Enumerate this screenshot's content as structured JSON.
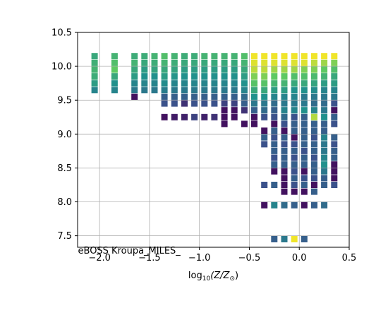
{
  "chart_data": {
    "type": "scatter",
    "marker": "square",
    "xlabel_main": "log",
    "xlabel_sub": "10",
    "xlabel_rest": "(Z/Z",
    "xlabel_sub2": "⊙",
    "xlabel_close": ")",
    "annotation": "eBOSS Kroupa_MILES_",
    "xlim": [
      -2.22,
      0.5
    ],
    "ylim": [
      7.33,
      10.5
    ],
    "grid": true,
    "xticks": [
      {
        "value": -2.0,
        "label": "−2.0"
      },
      {
        "value": -1.5,
        "label": "−1.5"
      },
      {
        "value": -1.0,
        "label": "−1.0"
      },
      {
        "value": -0.5,
        "label": "−0.5"
      },
      {
        "value": 0.0,
        "label": "0.0"
      },
      {
        "value": 0.5,
        "label": "0.5"
      }
    ],
    "yticks": [
      {
        "value": 7.5,
        "label": "7.5"
      },
      {
        "value": 8.0,
        "label": "8.0"
      },
      {
        "value": 8.5,
        "label": "8.5"
      },
      {
        "value": 9.0,
        "label": "9.0"
      },
      {
        "value": 9.5,
        "label": "9.5"
      },
      {
        "value": 10.0,
        "label": "10.0"
      },
      {
        "value": 10.5,
        "label": "10.5"
      }
    ],
    "colormap": [
      "#440154",
      "#3b528b",
      "#21918c",
      "#5ec962",
      "#fde725"
    ],
    "color_level_range": [
      0,
      1
    ],
    "points": [
      [
        -2.05,
        10.15,
        0.6
      ],
      [
        -2.05,
        10.05,
        0.63
      ],
      [
        -2.05,
        9.95,
        0.65
      ],
      [
        -2.05,
        9.85,
        0.62
      ],
      [
        -2.05,
        9.75,
        0.55
      ],
      [
        -2.05,
        9.65,
        0.45
      ],
      [
        -1.85,
        10.15,
        0.65
      ],
      [
        -1.85,
        10.05,
        0.7
      ],
      [
        -1.85,
        9.95,
        0.75
      ],
      [
        -1.85,
        9.85,
        0.6
      ],
      [
        -1.85,
        9.75,
        0.5
      ],
      [
        -1.85,
        9.65,
        0.45
      ],
      [
        -1.65,
        10.15,
        0.62
      ],
      [
        -1.65,
        10.05,
        0.65
      ],
      [
        -1.65,
        9.95,
        0.6
      ],
      [
        -1.65,
        9.85,
        0.55
      ],
      [
        -1.65,
        9.75,
        0.45
      ],
      [
        -1.65,
        9.65,
        0.4
      ],
      [
        -1.65,
        9.55,
        0.05
      ],
      [
        -1.55,
        10.15,
        0.62
      ],
      [
        -1.55,
        10.05,
        0.6
      ],
      [
        -1.55,
        9.95,
        0.55
      ],
      [
        -1.55,
        9.85,
        0.5
      ],
      [
        -1.55,
        9.75,
        0.45
      ],
      [
        -1.55,
        9.65,
        0.4
      ],
      [
        -1.45,
        10.15,
        0.65
      ],
      [
        -1.45,
        10.05,
        0.62
      ],
      [
        -1.45,
        9.95,
        0.58
      ],
      [
        -1.45,
        9.85,
        0.5
      ],
      [
        -1.45,
        9.75,
        0.45
      ],
      [
        -1.45,
        9.65,
        0.4
      ],
      [
        -1.35,
        10.15,
        0.7
      ],
      [
        -1.35,
        10.05,
        0.65
      ],
      [
        -1.35,
        9.95,
        0.6
      ],
      [
        -1.35,
        9.85,
        0.55
      ],
      [
        -1.35,
        9.75,
        0.48
      ],
      [
        -1.35,
        9.65,
        0.42
      ],
      [
        -1.35,
        9.55,
        0.3
      ],
      [
        -1.35,
        9.45,
        0.25
      ],
      [
        -1.35,
        9.25,
        0.05
      ],
      [
        -1.25,
        10.15,
        0.65
      ],
      [
        -1.25,
        10.05,
        0.62
      ],
      [
        -1.25,
        9.95,
        0.58
      ],
      [
        -1.25,
        9.85,
        0.52
      ],
      [
        -1.25,
        9.75,
        0.45
      ],
      [
        -1.25,
        9.65,
        0.4
      ],
      [
        -1.25,
        9.55,
        0.3
      ],
      [
        -1.25,
        9.45,
        0.25
      ],
      [
        -1.25,
        9.25,
        0.08
      ],
      [
        -1.15,
        10.15,
        0.62
      ],
      [
        -1.15,
        10.05,
        0.6
      ],
      [
        -1.15,
        9.95,
        0.55
      ],
      [
        -1.15,
        9.85,
        0.5
      ],
      [
        -1.15,
        9.75,
        0.45
      ],
      [
        -1.15,
        9.65,
        0.4
      ],
      [
        -1.15,
        9.55,
        0.3
      ],
      [
        -1.15,
        9.45,
        0.15
      ],
      [
        -1.15,
        9.25,
        0.1
      ],
      [
        -1.05,
        10.15,
        0.62
      ],
      [
        -1.05,
        10.05,
        0.6
      ],
      [
        -1.05,
        9.95,
        0.55
      ],
      [
        -1.05,
        9.85,
        0.5
      ],
      [
        -1.05,
        9.75,
        0.45
      ],
      [
        -1.05,
        9.65,
        0.4
      ],
      [
        -1.05,
        9.55,
        0.3
      ],
      [
        -1.05,
        9.45,
        0.25
      ],
      [
        -1.05,
        9.25,
        0.2
      ],
      [
        -0.95,
        10.15,
        0.65
      ],
      [
        -0.95,
        10.05,
        0.6
      ],
      [
        -0.95,
        9.95,
        0.55
      ],
      [
        -0.95,
        9.85,
        0.5
      ],
      [
        -0.95,
        9.75,
        0.45
      ],
      [
        -0.95,
        9.65,
        0.4
      ],
      [
        -0.95,
        9.55,
        0.3
      ],
      [
        -0.95,
        9.45,
        0.25
      ],
      [
        -0.95,
        9.25,
        0.1
      ],
      [
        -0.85,
        10.15,
        0.65
      ],
      [
        -0.85,
        10.05,
        0.6
      ],
      [
        -0.85,
        9.95,
        0.55
      ],
      [
        -0.85,
        9.85,
        0.5
      ],
      [
        -0.85,
        9.75,
        0.45
      ],
      [
        -0.85,
        9.65,
        0.4
      ],
      [
        -0.85,
        9.55,
        0.3
      ],
      [
        -0.85,
        9.45,
        0.25
      ],
      [
        -0.85,
        9.25,
        0.15
      ],
      [
        -0.75,
        10.15,
        0.65
      ],
      [
        -0.75,
        10.05,
        0.6
      ],
      [
        -0.75,
        9.95,
        0.55
      ],
      [
        -0.75,
        9.85,
        0.5
      ],
      [
        -0.75,
        9.75,
        0.45
      ],
      [
        -0.75,
        9.65,
        0.4
      ],
      [
        -0.75,
        9.55,
        0.3
      ],
      [
        -0.75,
        9.45,
        0.2
      ],
      [
        -0.75,
        9.35,
        0.05
      ],
      [
        -0.75,
        9.25,
        0.05
      ],
      [
        -0.75,
        9.15,
        0.05
      ],
      [
        -0.65,
        10.15,
        0.65
      ],
      [
        -0.65,
        10.05,
        0.6
      ],
      [
        -0.65,
        9.95,
        0.55
      ],
      [
        -0.65,
        9.85,
        0.5
      ],
      [
        -0.65,
        9.75,
        0.45
      ],
      [
        -0.65,
        9.65,
        0.4
      ],
      [
        -0.65,
        9.55,
        0.3
      ],
      [
        -0.65,
        9.45,
        0.2
      ],
      [
        -0.65,
        9.35,
        0.05
      ],
      [
        -0.65,
        9.25,
        0.05
      ],
      [
        -0.55,
        10.15,
        0.7
      ],
      [
        -0.55,
        10.05,
        0.65
      ],
      [
        -0.55,
        9.95,
        0.6
      ],
      [
        -0.55,
        9.85,
        0.55
      ],
      [
        -0.55,
        9.75,
        0.5
      ],
      [
        -0.55,
        9.65,
        0.45
      ],
      [
        -0.55,
        9.55,
        0.35
      ],
      [
        -0.55,
        9.45,
        0.3
      ],
      [
        -0.55,
        9.35,
        0.15
      ],
      [
        -0.55,
        9.15,
        0.05
      ],
      [
        -0.45,
        10.15,
        0.98
      ],
      [
        -0.45,
        10.05,
        0.95
      ],
      [
        -0.45,
        9.95,
        0.9
      ],
      [
        -0.45,
        9.85,
        0.8
      ],
      [
        -0.45,
        9.75,
        0.72
      ],
      [
        -0.45,
        9.65,
        0.6
      ],
      [
        -0.45,
        9.55,
        0.5
      ],
      [
        -0.45,
        9.45,
        0.4
      ],
      [
        -0.45,
        9.35,
        0.3
      ],
      [
        -0.45,
        9.25,
        0.05
      ],
      [
        -0.45,
        9.15,
        0.05
      ],
      [
        -0.35,
        10.15,
        0.98
      ],
      [
        -0.35,
        10.05,
        0.95
      ],
      [
        -0.35,
        9.95,
        0.9
      ],
      [
        -0.35,
        9.85,
        0.8
      ],
      [
        -0.35,
        9.75,
        0.72
      ],
      [
        -0.35,
        9.65,
        0.6
      ],
      [
        -0.35,
        9.55,
        0.5
      ],
      [
        -0.35,
        9.45,
        0.4
      ],
      [
        -0.35,
        9.35,
        0.35
      ],
      [
        -0.35,
        9.25,
        0.25
      ],
      [
        -0.35,
        9.05,
        0.05
      ],
      [
        -0.35,
        8.95,
        0.3
      ],
      [
        -0.35,
        8.85,
        0.25
      ],
      [
        -0.35,
        8.25,
        0.25
      ],
      [
        -0.35,
        7.95,
        0.05
      ],
      [
        -0.25,
        10.15,
        0.98
      ],
      [
        -0.25,
        10.05,
        0.95
      ],
      [
        -0.25,
        9.95,
        0.85
      ],
      [
        -0.25,
        9.85,
        0.75
      ],
      [
        -0.25,
        9.75,
        0.65
      ],
      [
        -0.25,
        9.65,
        0.55
      ],
      [
        -0.25,
        9.55,
        0.45
      ],
      [
        -0.25,
        9.45,
        0.35
      ],
      [
        -0.25,
        9.35,
        0.3
      ],
      [
        -0.25,
        9.25,
        0.25
      ],
      [
        -0.25,
        9.15,
        0.05
      ],
      [
        -0.25,
        9.05,
        0.3
      ],
      [
        -0.25,
        8.95,
        0.25
      ],
      [
        -0.25,
        8.85,
        0.3
      ],
      [
        -0.25,
        8.75,
        0.3
      ],
      [
        -0.25,
        8.65,
        0.25
      ],
      [
        -0.25,
        8.55,
        0.3
      ],
      [
        -0.25,
        8.45,
        0.05
      ],
      [
        -0.25,
        8.25,
        0.3
      ],
      [
        -0.25,
        7.95,
        0.45
      ],
      [
        -0.25,
        7.45,
        0.3
      ],
      [
        -0.15,
        10.15,
        0.98
      ],
      [
        -0.15,
        10.05,
        0.95
      ],
      [
        -0.15,
        9.95,
        0.85
      ],
      [
        -0.15,
        9.85,
        0.75
      ],
      [
        -0.15,
        9.75,
        0.65
      ],
      [
        -0.15,
        9.65,
        0.55
      ],
      [
        -0.15,
        9.55,
        0.45
      ],
      [
        -0.15,
        9.45,
        0.4
      ],
      [
        -0.15,
        9.35,
        0.45
      ],
      [
        -0.15,
        9.25,
        0.35
      ],
      [
        -0.15,
        9.15,
        0.25
      ],
      [
        -0.15,
        9.05,
        0.05
      ],
      [
        -0.15,
        8.95,
        0.3
      ],
      [
        -0.15,
        8.85,
        0.25
      ],
      [
        -0.15,
        8.75,
        0.3
      ],
      [
        -0.15,
        8.65,
        0.3
      ],
      [
        -0.15,
        8.55,
        0.3
      ],
      [
        -0.15,
        8.45,
        0.05
      ],
      [
        -0.15,
        8.35,
        0.05
      ],
      [
        -0.15,
        8.25,
        0.05
      ],
      [
        -0.15,
        8.15,
        0.05
      ],
      [
        -0.15,
        7.95,
        0.35
      ],
      [
        -0.15,
        7.45,
        0.4
      ],
      [
        -0.05,
        10.15,
        0.98
      ],
      [
        -0.05,
        10.05,
        0.95
      ],
      [
        -0.05,
        9.95,
        0.85
      ],
      [
        -0.05,
        9.85,
        0.7
      ],
      [
        -0.05,
        9.75,
        0.6
      ],
      [
        -0.05,
        9.65,
        0.5
      ],
      [
        -0.05,
        9.55,
        0.45
      ],
      [
        -0.05,
        9.45,
        0.4
      ],
      [
        -0.05,
        9.35,
        0.45
      ],
      [
        -0.05,
        9.25,
        0.25
      ],
      [
        -0.05,
        9.15,
        0.3
      ],
      [
        -0.05,
        9.05,
        0.3
      ],
      [
        -0.05,
        8.95,
        0.05
      ],
      [
        -0.05,
        8.85,
        0.25
      ],
      [
        -0.05,
        8.75,
        0.3
      ],
      [
        -0.05,
        8.65,
        0.25
      ],
      [
        -0.05,
        8.55,
        0.3
      ],
      [
        -0.05,
        8.45,
        0.25
      ],
      [
        -0.05,
        8.35,
        0.3
      ],
      [
        -0.05,
        8.25,
        0.25
      ],
      [
        -0.05,
        8.15,
        0.05
      ],
      [
        -0.05,
        7.95,
        0.3
      ],
      [
        -0.05,
        7.45,
        0.98
      ],
      [
        0.05,
        10.15,
        0.98
      ],
      [
        0.05,
        10.05,
        0.95
      ],
      [
        0.05,
        9.95,
        0.8
      ],
      [
        0.05,
        9.85,
        0.7
      ],
      [
        0.05,
        9.75,
        0.6
      ],
      [
        0.05,
        9.65,
        0.5
      ],
      [
        0.05,
        9.55,
        0.4
      ],
      [
        0.05,
        9.45,
        0.4
      ],
      [
        0.05,
        9.35,
        0.5
      ],
      [
        0.05,
        9.25,
        0.3
      ],
      [
        0.05,
        9.15,
        0.3
      ],
      [
        0.05,
        9.05,
        0.3
      ],
      [
        0.05,
        8.95,
        0.3
      ],
      [
        0.05,
        8.85,
        0.3
      ],
      [
        0.05,
        8.75,
        0.25
      ],
      [
        0.05,
        8.65,
        0.3
      ],
      [
        0.05,
        8.55,
        0.3
      ],
      [
        0.05,
        8.45,
        0.05
      ],
      [
        0.05,
        8.35,
        0.25
      ],
      [
        0.05,
        8.25,
        0.3
      ],
      [
        0.05,
        8.15,
        0.05
      ],
      [
        0.05,
        7.95,
        0.05
      ],
      [
        0.05,
        7.45,
        0.3
      ],
      [
        0.15,
        10.15,
        0.98
      ],
      [
        0.15,
        10.05,
        0.9
      ],
      [
        0.15,
        9.95,
        0.8
      ],
      [
        0.15,
        9.85,
        0.68
      ],
      [
        0.15,
        9.75,
        0.58
      ],
      [
        0.15,
        9.65,
        0.48
      ],
      [
        0.15,
        9.55,
        0.4
      ],
      [
        0.15,
        9.45,
        0.35
      ],
      [
        0.15,
        9.35,
        0.45
      ],
      [
        0.15,
        9.25,
        0.88
      ],
      [
        0.15,
        9.15,
        0.3
      ],
      [
        0.15,
        9.05,
        0.3
      ],
      [
        0.15,
        8.95,
        0.25
      ],
      [
        0.15,
        8.85,
        0.3
      ],
      [
        0.15,
        8.75,
        0.3
      ],
      [
        0.15,
        8.65,
        0.25
      ],
      [
        0.15,
        8.55,
        0.3
      ],
      [
        0.15,
        8.45,
        0.3
      ],
      [
        0.15,
        8.35,
        0.25
      ],
      [
        0.15,
        8.25,
        0.05
      ],
      [
        0.15,
        8.15,
        0.3
      ],
      [
        0.15,
        7.95,
        0.3
      ],
      [
        0.25,
        10.15,
        0.98
      ],
      [
        0.25,
        10.05,
        0.85
      ],
      [
        0.25,
        9.95,
        0.75
      ],
      [
        0.25,
        9.85,
        0.65
      ],
      [
        0.25,
        9.75,
        0.55
      ],
      [
        0.25,
        9.65,
        0.45
      ],
      [
        0.25,
        9.55,
        0.4
      ],
      [
        0.25,
        9.45,
        0.35
      ],
      [
        0.25,
        9.35,
        0.4
      ],
      [
        0.25,
        9.25,
        0.5
      ],
      [
        0.25,
        9.15,
        0.3
      ],
      [
        0.25,
        9.05,
        0.3
      ],
      [
        0.25,
        8.95,
        0.45
      ],
      [
        0.25,
        8.85,
        0.4
      ],
      [
        0.25,
        8.75,
        0.4
      ],
      [
        0.25,
        8.65,
        0.45
      ],
      [
        0.25,
        8.55,
        0.5
      ],
      [
        0.25,
        8.45,
        0.4
      ],
      [
        0.25,
        8.35,
        0.3
      ],
      [
        0.25,
        8.25,
        0.3
      ],
      [
        0.25,
        7.95,
        0.35
      ],
      [
        0.35,
        10.15,
        0.98
      ],
      [
        0.35,
        10.05,
        0.8
      ],
      [
        0.35,
        9.95,
        0.7
      ],
      [
        0.35,
        9.85,
        0.6
      ],
      [
        0.35,
        9.75,
        0.55
      ],
      [
        0.35,
        9.65,
        0.45
      ],
      [
        0.35,
        9.55,
        0.4
      ],
      [
        0.35,
        9.45,
        0.25
      ],
      [
        0.35,
        9.35,
        0.05
      ],
      [
        0.35,
        9.25,
        0.3
      ],
      [
        0.35,
        9.15,
        0.25
      ],
      [
        0.35,
        8.95,
        0.3
      ],
      [
        0.35,
        8.85,
        0.25
      ],
      [
        0.35,
        8.75,
        0.3
      ],
      [
        0.35,
        8.65,
        0.3
      ],
      [
        0.35,
        8.55,
        0.05
      ],
      [
        0.35,
        8.45,
        0.05
      ],
      [
        0.35,
        8.35,
        0.05
      ],
      [
        0.35,
        8.25,
        0.25
      ]
    ]
  }
}
